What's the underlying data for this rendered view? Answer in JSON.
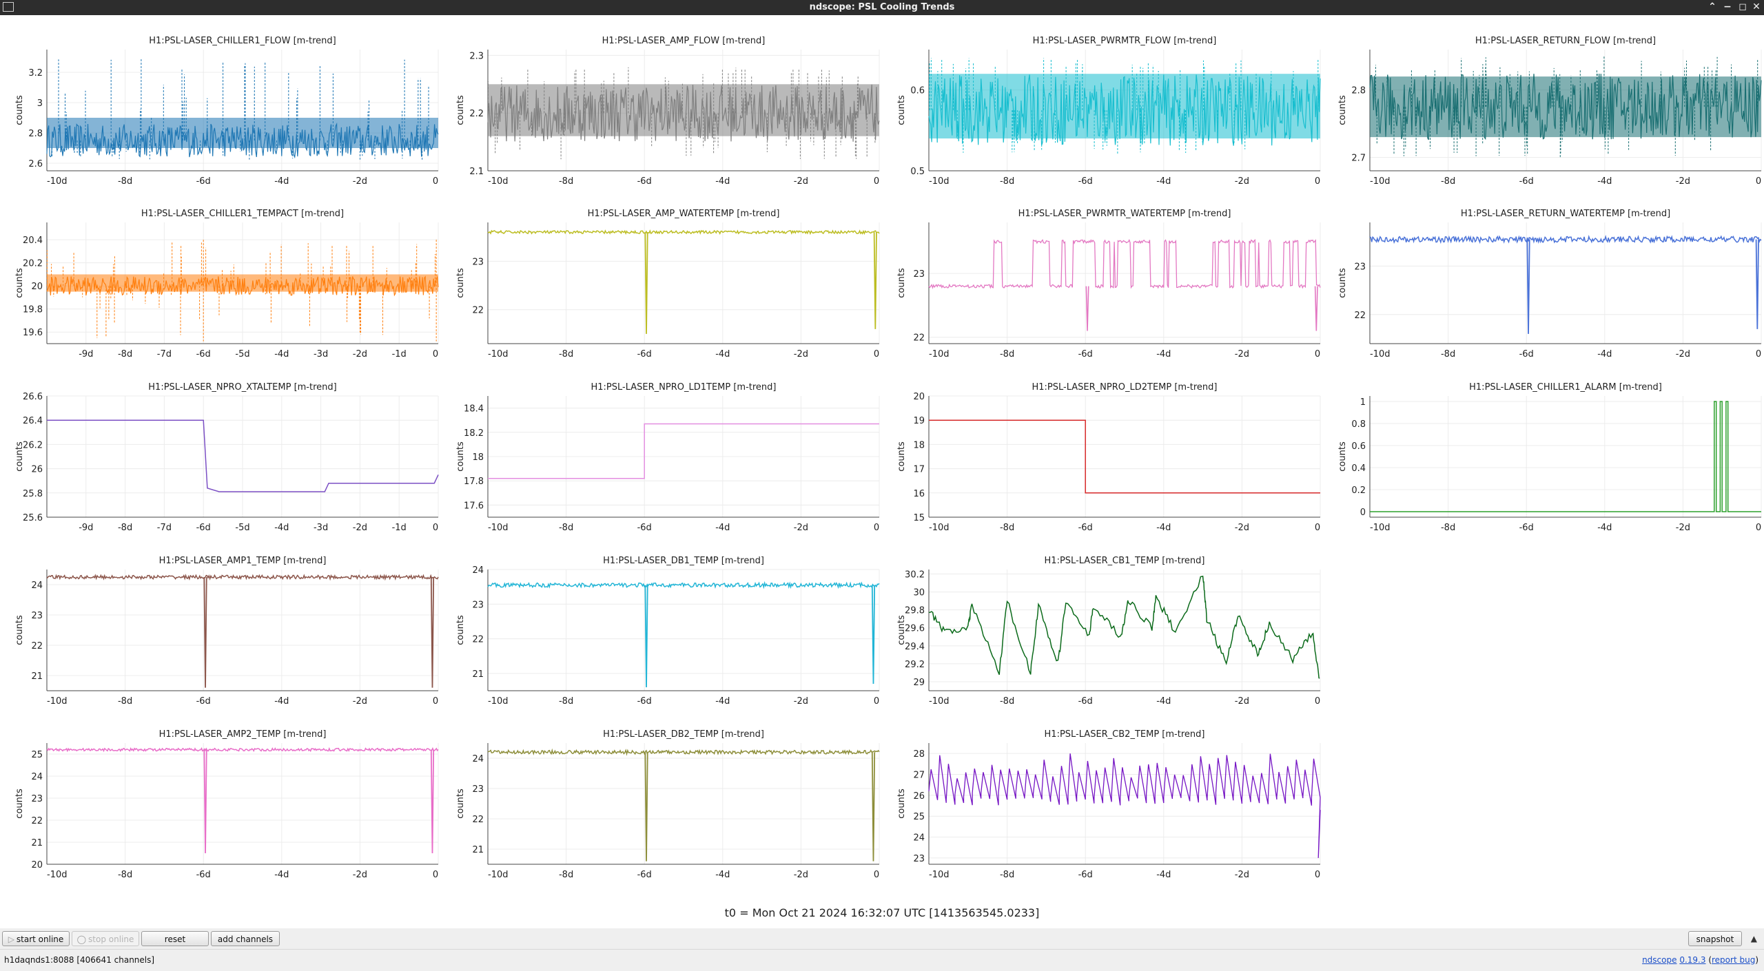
{
  "window": {
    "title": "ndscope: PSL Cooling Trends",
    "controls": [
      "chevron-up",
      "minimize",
      "maximize",
      "close"
    ]
  },
  "t0_label": "t0 = Mon Oct 21 2024 16:32:07 UTC [1413563545.0233]",
  "toolbar": {
    "start_online": "start online",
    "stop_online": "stop online",
    "reset": "reset",
    "add_channels": "add channels",
    "snapshot": "snapshot"
  },
  "status": {
    "server": "h1daqnds1:8088  [406641 channels]",
    "app_name": "ndscope",
    "version": "0.19.3",
    "report_bug": "report bug"
  },
  "chart_data": [
    {
      "title": "H1:PSL-LASER_CHILLER1_FLOW [m-trend]",
      "ylabel": "counts",
      "type": "line",
      "color": "#1f77b4",
      "style": "bands",
      "yticks": [
        2.6,
        2.8,
        3,
        3.2
      ],
      "ytick_labels": [
        "2.6",
        "2.8",
        "3",
        "3.2"
      ],
      "ylim": [
        2.55,
        3.35
      ],
      "xticks": [
        -10,
        -8,
        -6,
        -4,
        -2,
        0
      ],
      "xtick_labels": [
        "-10d",
        "-8d",
        "-6d",
        "-4d",
        "-2d",
        "0"
      ],
      "xlim": [
        -10,
        0
      ],
      "series": [
        {
          "x": [
            -10,
            0
          ],
          "center": 2.75,
          "band": [
            2.7,
            2.9
          ],
          "spike_max": 3.3,
          "spike_min": 2.62
        }
      ]
    },
    {
      "title": "H1:PSL-LASER_AMP_FLOW [m-trend]",
      "ylabel": "counts",
      "type": "line",
      "color": "#7f7f7f",
      "style": "bands",
      "yticks": [
        2.1,
        2.2,
        2.3
      ],
      "ytick_labels": [
        "2.1",
        "2.2",
        "2.3"
      ],
      "ylim": [
        2.1,
        2.31
      ],
      "xticks": [
        -10,
        -8,
        -6,
        -4,
        -2,
        0
      ],
      "xtick_labels": [
        "-10d",
        "-8d",
        "-6d",
        "-4d",
        "-2d",
        "0"
      ],
      "xlim": [
        -10,
        0
      ],
      "series": [
        {
          "x": [
            -10,
            0
          ],
          "center": 2.2,
          "band": [
            2.16,
            2.25
          ],
          "spike_max": 2.28,
          "spike_min": 2.12
        }
      ]
    },
    {
      "title": "H1:PSL-LASER_PWRMTR_FLOW [m-trend]",
      "ylabel": "counts",
      "type": "line",
      "color": "#17becf",
      "style": "bands",
      "yticks": [
        0.5,
        0.6
      ],
      "ytick_labels": [
        "0.5",
        "0.6"
      ],
      "ylim": [
        0.5,
        0.65
      ],
      "xticks": [
        -10,
        -8,
        -6,
        -4,
        -2,
        0
      ],
      "xtick_labels": [
        "-10d",
        "-8d",
        "-6d",
        "-4d",
        "-2d",
        "0"
      ],
      "xlim": [
        -10,
        0
      ],
      "series": [
        {
          "x": [
            -10,
            0
          ],
          "center": 0.575,
          "band": [
            0.54,
            0.62
          ],
          "spike_max": 0.64,
          "spike_min": 0.52
        }
      ]
    },
    {
      "title": "H1:PSL-LASER_RETURN_FLOW [m-trend]",
      "ylabel": "counts",
      "type": "line",
      "color": "#1a6f72",
      "style": "bands",
      "yticks": [
        2.7,
        2.8
      ],
      "ytick_labels": [
        "2.7",
        "2.8"
      ],
      "ylim": [
        2.68,
        2.86
      ],
      "xticks": [
        -10,
        -8,
        -6,
        -4,
        -2,
        0
      ],
      "xtick_labels": [
        "-10d",
        "-8d",
        "-6d",
        "-4d",
        "-2d",
        "0"
      ],
      "xlim": [
        -10,
        0
      ],
      "series": [
        {
          "x": [
            -10,
            0
          ],
          "center": 2.775,
          "band": [
            2.73,
            2.82
          ],
          "spike_max": 2.85,
          "spike_min": 2.7
        }
      ]
    },
    {
      "title": "H1:PSL-LASER_CHILLER1_TEMPACT [m-trend]",
      "ylabel": "counts",
      "type": "line",
      "color": "#ff7f0e",
      "style": "bands",
      "yticks": [
        19.6,
        19.8,
        20,
        20.2,
        20.4
      ],
      "ytick_labels": [
        "19.6",
        "19.8",
        "20",
        "20.2",
        "20.4"
      ],
      "ylim": [
        19.5,
        20.55
      ],
      "xticks": [
        -9,
        -8,
        -7,
        -6,
        -5,
        -4,
        -3,
        -2,
        -1,
        0
      ],
      "xtick_labels": [
        "-9d",
        "-8d",
        "-7d",
        "-6d",
        "-5d",
        "-4d",
        "-3d",
        "-2d",
        "-1d",
        "0"
      ],
      "xlim": [
        -10,
        0
      ],
      "series": [
        {
          "x": [
            -10,
            0
          ],
          "center": 20.0,
          "band": [
            19.95,
            20.1
          ],
          "spike_max": 20.4,
          "spike_min": 19.52,
          "spike_at": [
            -6,
            -0.05
          ]
        }
      ]
    },
    {
      "title": "H1:PSL-LASER_AMP_WATERTEMP [m-trend]",
      "ylabel": "counts",
      "type": "line",
      "color": "#bcbd22",
      "style": "flat",
      "yticks": [
        22,
        23
      ],
      "ytick_labels": [
        "22",
        "23"
      ],
      "ylim": [
        21.3,
        23.8
      ],
      "xticks": [
        -10,
        -8,
        -6,
        -4,
        -2,
        0
      ],
      "xtick_labels": [
        "-10d",
        "-8d",
        "-6d",
        "-4d",
        "-2d",
        "0"
      ],
      "xlim": [
        -10,
        0
      ],
      "series": [
        {
          "x": [
            -10,
            0
          ],
          "level": 23.6,
          "noise": 0.03,
          "dips": [
            [
              -5.95,
              21.5
            ],
            [
              -0.1,
              21.6
            ]
          ]
        }
      ]
    },
    {
      "title": "H1:PSL-LASER_PWRMTR_WATERTEMP [m-trend]",
      "ylabel": "counts",
      "type": "line",
      "color": "#e377c2",
      "style": "toggle",
      "yticks": [
        22,
        23
      ],
      "ytick_labels": [
        "22",
        "23"
      ],
      "ylim": [
        21.9,
        23.8
      ],
      "xticks": [
        -10,
        -8,
        -6,
        -4,
        -2,
        0
      ],
      "xtick_labels": [
        "-10d",
        "-8d",
        "-6d",
        "-4d",
        "-2d",
        "0"
      ],
      "xlim": [
        -10,
        0
      ],
      "series": [
        {
          "x": [
            -10,
            0
          ],
          "low": 22.8,
          "high": 23.5,
          "dips": [
            [
              -5.95,
              22.1
            ],
            [
              -0.1,
              22.1
            ]
          ]
        }
      ]
    },
    {
      "title": "H1:PSL-LASER_RETURN_WATERTEMP [m-trend]",
      "ylabel": "counts",
      "type": "line",
      "color": "#4a72d8",
      "style": "flat",
      "yticks": [
        22,
        23
      ],
      "ytick_labels": [
        "22",
        "23"
      ],
      "ylim": [
        21.4,
        23.9
      ],
      "xticks": [
        -10,
        -8,
        -6,
        -4,
        -2,
        0
      ],
      "xtick_labels": [
        "-10d",
        "-8d",
        "-6d",
        "-4d",
        "-2d",
        "0"
      ],
      "xlim": [
        -10,
        0
      ],
      "series": [
        {
          "x": [
            -10,
            0
          ],
          "level": 23.55,
          "noise": 0.06,
          "dips": [
            [
              -5.95,
              21.6
            ],
            [
              -0.1,
              21.7
            ]
          ]
        }
      ]
    },
    {
      "title": "H1:PSL-LASER_NPRO_XTALTEMP [m-trend]",
      "ylabel": "counts",
      "type": "line",
      "color": "#7b4fc4",
      "style": "step",
      "yticks": [
        25.6,
        25.8,
        26,
        26.2,
        26.4,
        26.6
      ],
      "ytick_labels": [
        "25.6",
        "25.8",
        "26",
        "26.2",
        "26.4",
        "26.6"
      ],
      "ylim": [
        25.6,
        26.6
      ],
      "xticks": [
        -9,
        -8,
        -7,
        -6,
        -5,
        -4,
        -3,
        -2,
        -1,
        0
      ],
      "xtick_labels": [
        "-9d",
        "-8d",
        "-7d",
        "-6d",
        "-5d",
        "-4d",
        "-3d",
        "-2d",
        "-1d",
        "0"
      ],
      "xlim": [
        -10,
        0
      ],
      "series": [
        {
          "x": [
            -10,
            -6,
            -5.9,
            -5.6,
            -2.9,
            -2.8,
            -0.1,
            0
          ],
          "y": [
            26.4,
            26.4,
            25.84,
            25.81,
            25.81,
            25.88,
            25.88,
            25.95
          ]
        }
      ]
    },
    {
      "title": "H1:PSL-LASER_NPRO_LD1TEMP [m-trend]",
      "ylabel": "counts",
      "type": "line",
      "color": "#e38ee0",
      "style": "step",
      "yticks": [
        17.6,
        17.8,
        18,
        18.2,
        18.4
      ],
      "ytick_labels": [
        "17.6",
        "17.8",
        "18",
        "18.2",
        "18.4"
      ],
      "ylim": [
        17.5,
        18.5
      ],
      "xticks": [
        -10,
        -8,
        -6,
        -4,
        -2,
        0
      ],
      "xtick_labels": [
        "-10d",
        "-8d",
        "-6d",
        "-4d",
        "-2d",
        "0"
      ],
      "xlim": [
        -10,
        0
      ],
      "series": [
        {
          "x": [
            -10,
            -6,
            -6,
            0
          ],
          "y": [
            17.82,
            17.82,
            18.27,
            18.27
          ]
        }
      ]
    },
    {
      "title": "H1:PSL-LASER_NPRO_LD2TEMP [m-trend]",
      "ylabel": "counts",
      "type": "line",
      "color": "#d62728",
      "style": "step",
      "yticks": [
        15,
        16,
        17,
        18,
        19,
        20
      ],
      "ytick_labels": [
        "15",
        "16",
        "17",
        "18",
        "19",
        "20"
      ],
      "ylim": [
        15,
        20
      ],
      "xticks": [
        -10,
        -8,
        -6,
        -4,
        -2,
        0
      ],
      "xtick_labels": [
        "-10d",
        "-8d",
        "-6d",
        "-4d",
        "-2d",
        "0"
      ],
      "xlim": [
        -10,
        0
      ],
      "series": [
        {
          "x": [
            -10,
            -6,
            -6,
            0
          ],
          "y": [
            19,
            19,
            16,
            16
          ]
        }
      ]
    },
    {
      "title": "H1:PSL-LASER_CHILLER1_ALARM [m-trend]",
      "ylabel": "counts",
      "type": "line",
      "color": "#2ca02c",
      "style": "step",
      "yticks": [
        0,
        0.2,
        0.4,
        0.6,
        0.8,
        1
      ],
      "ytick_labels": [
        "0",
        "0.2",
        "0.4",
        "0.6",
        "0.8",
        "1"
      ],
      "ylim": [
        -0.05,
        1.05
      ],
      "xticks": [
        -10,
        -8,
        -6,
        -4,
        -2,
        0
      ],
      "xtick_labels": [
        "-10d",
        "-8d",
        "-6d",
        "-4d",
        "-2d",
        "0"
      ],
      "xlim": [
        -10,
        0
      ],
      "series": [
        {
          "x": [
            -10,
            -1.2,
            -1.2,
            -1.15,
            -1.15,
            -1.05,
            -1.05,
            -1.0,
            -1.0,
            -0.9,
            -0.9,
            -0.85,
            -0.85,
            0
          ],
          "y": [
            0,
            0,
            1,
            1,
            0,
            0,
            1,
            1,
            0,
            0,
            1,
            1,
            0,
            0
          ]
        }
      ]
    },
    {
      "title": "H1:PSL-LASER_AMP1_TEMP [m-trend]",
      "ylabel": "counts",
      "type": "line",
      "color": "#8c564b",
      "style": "flat",
      "yticks": [
        21,
        22,
        23,
        24
      ],
      "ytick_labels": [
        "21",
        "22",
        "23",
        "24"
      ],
      "ylim": [
        20.5,
        24.5
      ],
      "xticks": [
        -10,
        -8,
        -6,
        -4,
        -2,
        0
      ],
      "xtick_labels": [
        "-10d",
        "-8d",
        "-6d",
        "-4d",
        "-2d",
        "0"
      ],
      "xlim": [
        -10,
        0
      ],
      "series": [
        {
          "x": [
            -10,
            0
          ],
          "level": 24.25,
          "noise": 0.06,
          "dips": [
            [
              -5.95,
              20.6
            ],
            [
              -0.15,
              20.6
            ]
          ]
        }
      ]
    },
    {
      "title": "H1:PSL-LASER_DB1_TEMP [m-trend]",
      "ylabel": "counts",
      "type": "line",
      "color": "#22b5d6",
      "style": "flat",
      "yticks": [
        21,
        22,
        23,
        24
      ],
      "ytick_labels": [
        "21",
        "22",
        "23",
        "24"
      ],
      "ylim": [
        20.5,
        24
      ],
      "xticks": [
        -10,
        -8,
        -6,
        -4,
        -2,
        0
      ],
      "xtick_labels": [
        "-10d",
        "-8d",
        "-6d",
        "-4d",
        "-2d",
        "0"
      ],
      "xlim": [
        -10,
        0
      ],
      "series": [
        {
          "x": [
            -10,
            0
          ],
          "level": 23.55,
          "noise": 0.06,
          "dips": [
            [
              -5.95,
              20.6
            ],
            [
              -0.15,
              20.7
            ]
          ]
        }
      ]
    },
    {
      "title": "H1:PSL-LASER_CB1_TEMP [m-trend]",
      "ylabel": "counts",
      "type": "line",
      "color": "#0b6a1a",
      "style": "wave",
      "yticks": [
        29,
        29.2,
        29.4,
        29.6,
        29.8,
        30,
        30.2
      ],
      "ytick_labels": [
        "29",
        "29.2",
        "29.4",
        "29.6",
        "29.8",
        "30",
        "30.2"
      ],
      "ylim": [
        28.9,
        30.25
      ],
      "xticks": [
        -10,
        -8,
        -6,
        -4,
        -2,
        0
      ],
      "xtick_labels": [
        "-10d",
        "-8d",
        "-6d",
        "-4d",
        "-2d",
        "0"
      ],
      "xlim": [
        -10,
        0
      ],
      "series": [
        {
          "x": [
            -10,
            -9.6,
            -9.0,
            -8.9,
            -8.2,
            -8.0,
            -7.4,
            -7.2,
            -6.7,
            -6.5,
            -5.9,
            -5.8,
            -5.1,
            -4.9,
            -4.3,
            -4.2,
            -3.7,
            -3.0,
            -2.9,
            -2.4,
            -2.1,
            -1.6,
            -1.3,
            -0.7,
            -0.2,
            0
          ],
          "y": [
            29.8,
            29.55,
            29.6,
            29.85,
            29.1,
            29.9,
            29.1,
            29.85,
            29.2,
            29.9,
            29.5,
            29.85,
            29.5,
            29.9,
            29.6,
            29.95,
            29.55,
            30.2,
            29.7,
            29.2,
            29.75,
            29.3,
            29.65,
            29.25,
            29.55,
            28.95
          ]
        }
      ]
    },
    {
      "title": "H1:PSL-LASER_AMP2_TEMP [m-trend]",
      "ylabel": "counts",
      "type": "line",
      "color": "#e86dc8",
      "style": "flat",
      "yticks": [
        20,
        21,
        22,
        23,
        24,
        25
      ],
      "ytick_labels": [
        "20",
        "21",
        "22",
        "23",
        "24",
        "25"
      ],
      "ylim": [
        20,
        25.5
      ],
      "xticks": [
        -10,
        -8,
        -6,
        -4,
        -2,
        0
      ],
      "xtick_labels": [
        "-10d",
        "-8d",
        "-6d",
        "-4d",
        "-2d",
        "0"
      ],
      "xlim": [
        -10,
        0
      ],
      "series": [
        {
          "x": [
            -10,
            0
          ],
          "level": 25.2,
          "noise": 0.06,
          "dips": [
            [
              -5.95,
              20.5
            ],
            [
              -0.15,
              20.5
            ]
          ]
        }
      ]
    },
    {
      "title": "H1:PSL-LASER_DB2_TEMP [m-trend]",
      "ylabel": "counts",
      "type": "line",
      "color": "#8d8e3a",
      "style": "flat",
      "yticks": [
        21,
        22,
        23,
        24
      ],
      "ytick_labels": [
        "21",
        "22",
        "23",
        "24"
      ],
      "ylim": [
        20.5,
        24.5
      ],
      "xticks": [
        -10,
        -8,
        -6,
        -4,
        -2,
        0
      ],
      "xtick_labels": [
        "-10d",
        "-8d",
        "-6d",
        "-4d",
        "-2d",
        "0"
      ],
      "xlim": [
        -10,
        0
      ],
      "series": [
        {
          "x": [
            -10,
            0
          ],
          "level": 24.2,
          "noise": 0.06,
          "dips": [
            [
              -5.95,
              20.6
            ],
            [
              -0.15,
              20.6
            ]
          ]
        }
      ]
    },
    {
      "title": "H1:PSL-LASER_CB2_TEMP [m-trend]",
      "ylabel": "counts",
      "type": "line",
      "color": "#7514c4",
      "style": "saw",
      "yticks": [
        23,
        24,
        25,
        26,
        27,
        28
      ],
      "ytick_labels": [
        "23",
        "24",
        "25",
        "26",
        "27",
        "28"
      ],
      "ylim": [
        22.7,
        28.5
      ],
      "xticks": [
        -10,
        -8,
        -6,
        -4,
        -2,
        0
      ],
      "xtick_labels": [
        "-10d",
        "-8d",
        "-6d",
        "-4d",
        "-2d",
        "0"
      ],
      "xlim": [
        -10,
        0
      ],
      "series": [
        {
          "x": [
            -10,
            0
          ],
          "base": 26.0,
          "peak": 28.0,
          "cycles": 45,
          "end_min": 23.0
        }
      ]
    }
  ]
}
